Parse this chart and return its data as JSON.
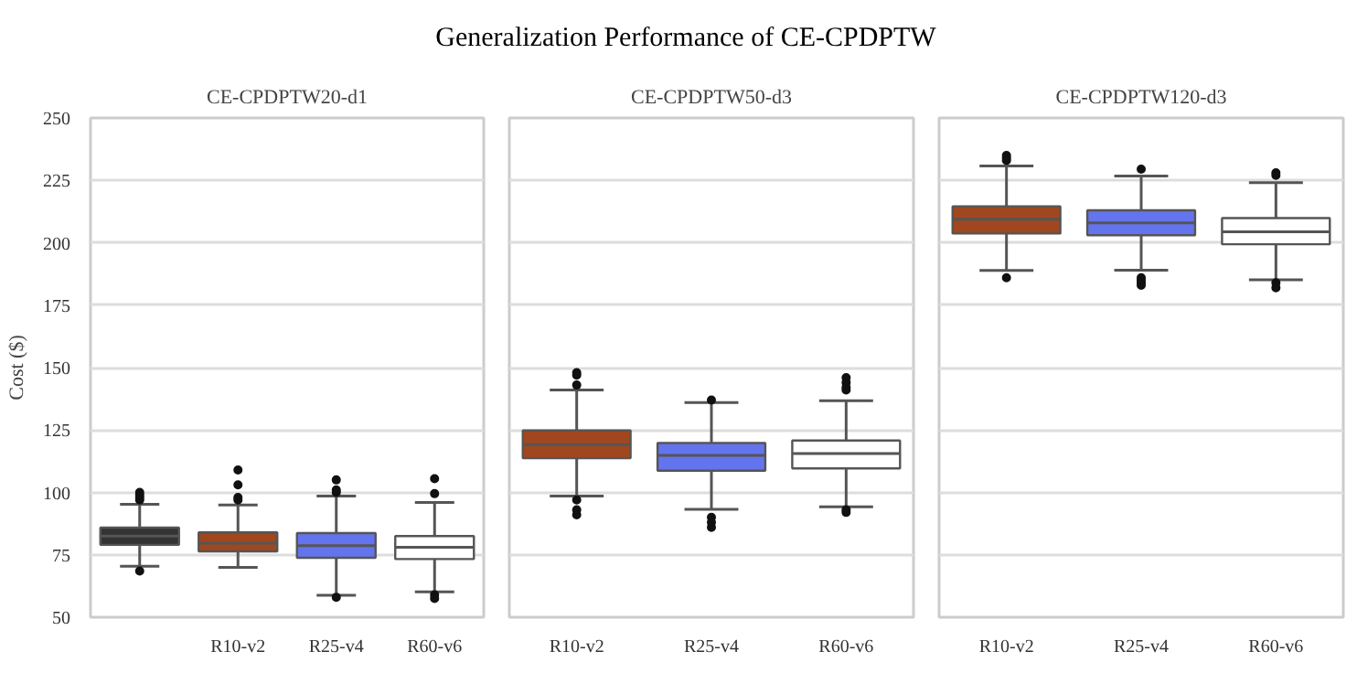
{
  "chart_data": [
    {
      "type": "other",
      "title": "Generalization Performance of CE-CPDPTW"
    },
    {
      "type": "box",
      "title": "CE-CPDPTW20-d1",
      "ylabel": "Cost ($)",
      "categories": [
        null,
        "R10-v2",
        "R25-v4",
        "R60-v6"
      ],
      "colors": [
        "#333333",
        "#a0471f",
        "#6474ee",
        "#ffffff"
      ],
      "ylim": [
        50,
        250
      ],
      "yticks": [
        50,
        75,
        100,
        125,
        150,
        175,
        200,
        225,
        250
      ],
      "grid": "y",
      "boxes": [
        {
          "low": 70.4,
          "q1": 79.0,
          "median": 82.5,
          "q3": 85.9,
          "high": 95.2,
          "outliers": [
            97,
            98,
            99,
            100,
            68.5
          ]
        },
        {
          "low": 70,
          "q1": 76.4,
          "median": 79.7,
          "q3": 84,
          "high": 95,
          "outliers": [
            97,
            98,
            103,
            109
          ]
        },
        {
          "low": 58.8,
          "q1": 73.8,
          "median": 78.7,
          "q3": 83.7,
          "high": 98.5,
          "outliers": [
            100,
            101,
            105,
            58
          ]
        },
        {
          "low": 60.2,
          "q1": 73.3,
          "median": 78,
          "q3": 82.5,
          "high": 96,
          "outliers": [
            99.5,
            105.5,
            59,
            57.5
          ]
        }
      ]
    },
    {
      "type": "box",
      "title": "CE-CPDPTW50-d3",
      "categories": [
        "R10-v2",
        "R25-v4",
        "R60-v6"
      ],
      "colors": [
        "#a0471f",
        "#6474ee",
        "#ffffff"
      ],
      "ylim": [
        50,
        250
      ],
      "yticks": [
        50,
        75,
        100,
        125,
        150,
        175,
        200,
        225,
        250
      ],
      "grid": "y",
      "tick_labels": "x",
      "boxes": [
        {
          "low": 98.5,
          "q1": 113.7,
          "median": 119.1,
          "q3": 124.8,
          "high": 141,
          "outliers": [
            148,
            147,
            143,
            97,
            93,
            91
          ]
        },
        {
          "low": 93.2,
          "q1": 108.7,
          "median": 114.8,
          "q3": 119.8,
          "high": 136,
          "outliers": [
            137,
            90,
            88,
            86
          ]
        },
        {
          "low": 94.2,
          "q1": 109.6,
          "median": 115.6,
          "q3": 120.8,
          "high": 136.7,
          "outliers": [
            146,
            144,
            142,
            141,
            93,
            92
          ]
        }
      ]
    },
    {
      "type": "box",
      "title": "CE-CPDPTW120-d3",
      "categories": [
        "R10-v2",
        "R25-v4",
        "R60-v6"
      ],
      "colors": [
        "#a0471f",
        "#6474ee",
        "#ffffff"
      ],
      "ylim": [
        50,
        250
      ],
      "yticks": [
        50,
        75,
        100,
        125,
        150,
        175,
        200,
        225,
        250
      ],
      "grid": "y",
      "tick_labels": "x",
      "boxes": [
        {
          "low": 188.9,
          "q1": 203.7,
          "median": 209.4,
          "q3": 214.6,
          "high": 230.8,
          "outliers": [
            235,
            234,
            233,
            186
          ]
        },
        {
          "low": 189,
          "q1": 203,
          "median": 208,
          "q3": 213,
          "high": 226.7,
          "outliers": [
            229.5,
            186,
            185,
            184,
            183
          ]
        },
        {
          "low": 185.2,
          "q1": 199.4,
          "median": 204.4,
          "q3": 209.9,
          "high": 224.1,
          "outliers": [
            228,
            227,
            184,
            182
          ]
        }
      ]
    }
  ]
}
